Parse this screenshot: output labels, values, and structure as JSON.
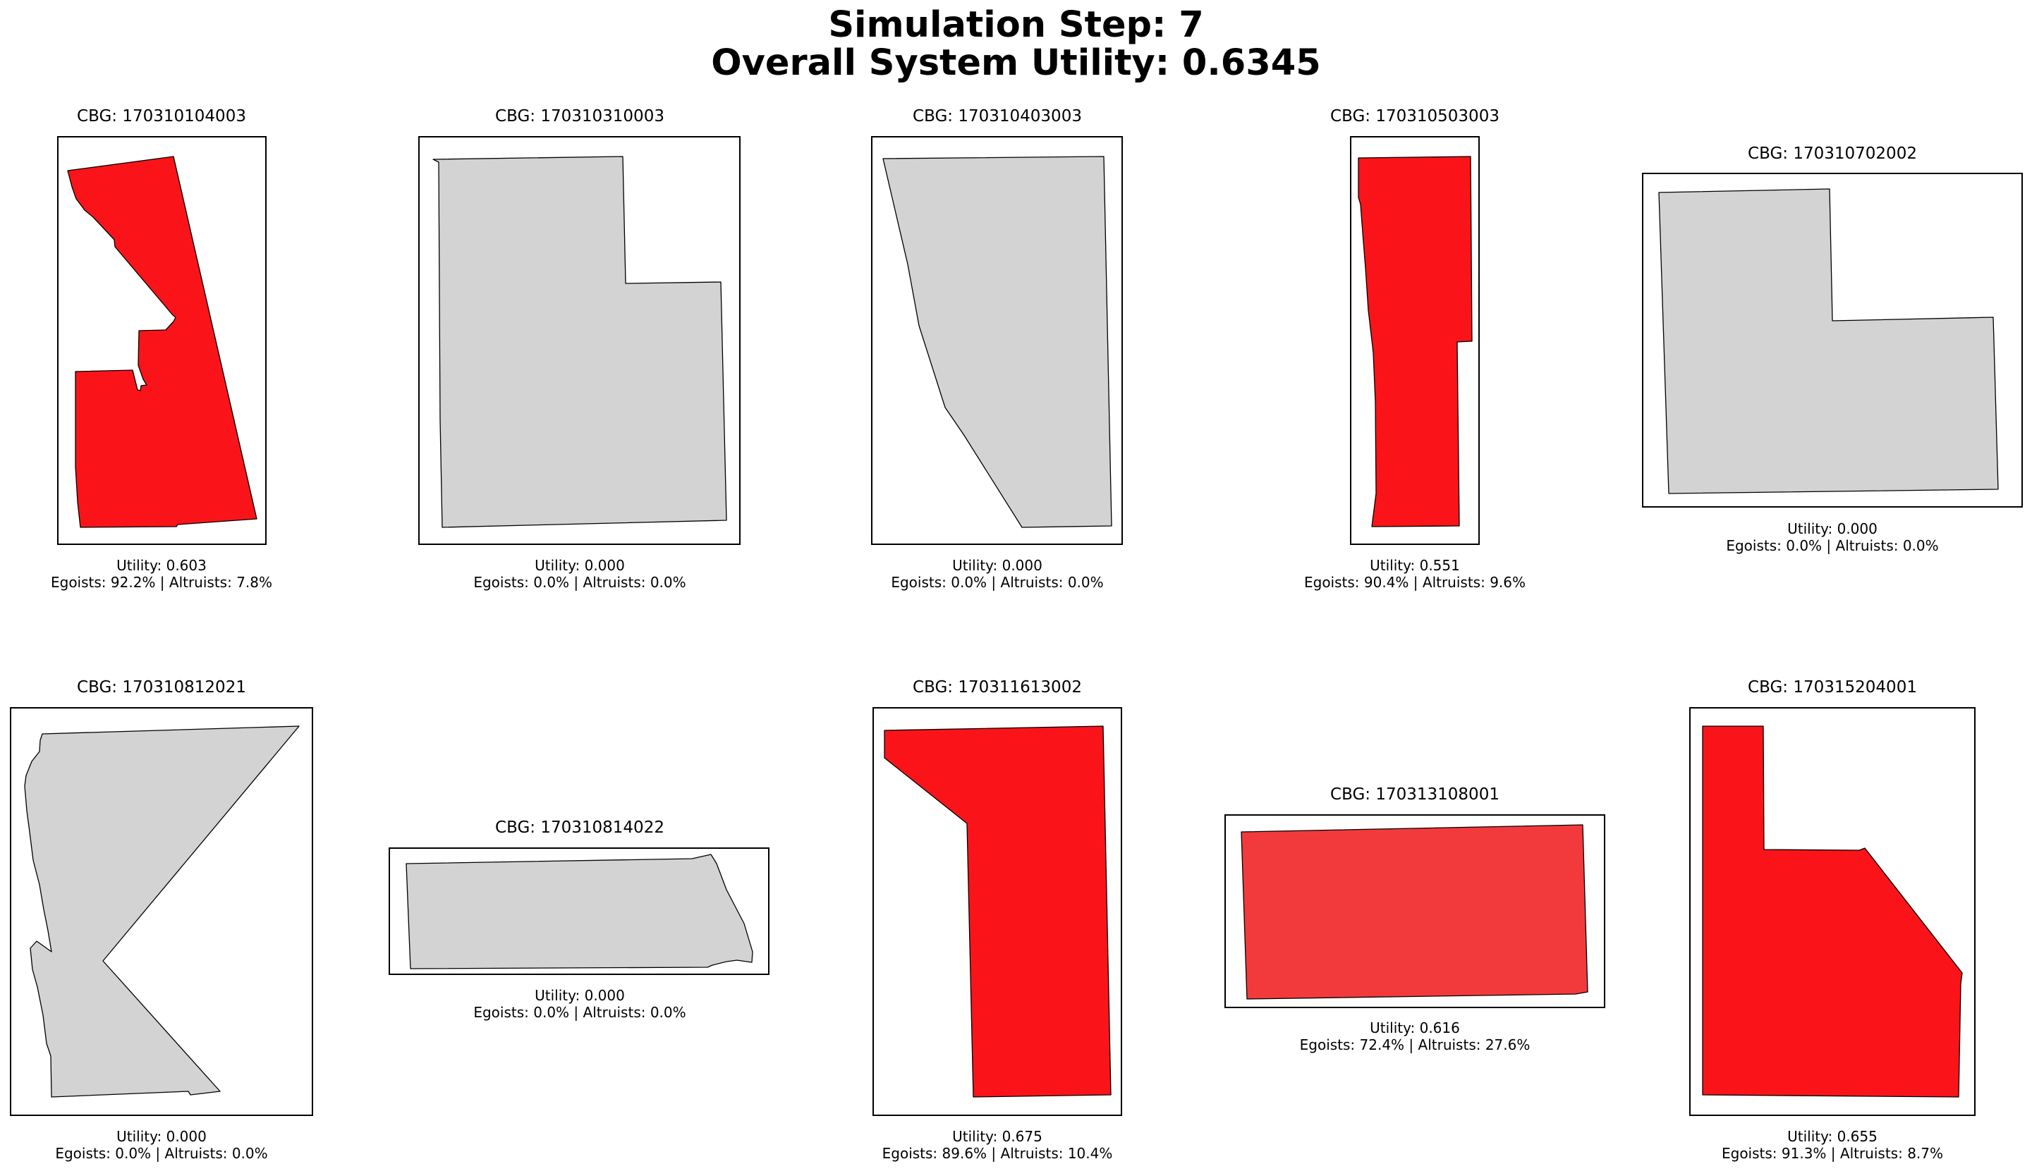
{
  "figure": {
    "title_line1": "Simulation Step: 7",
    "title_line2": "Overall System Utility: 0.6345"
  },
  "colors": {
    "inactive_fill": "#d3d3d3",
    "high_utility_fill": "#fa1419",
    "medium_utility_fill": "#f23a3c",
    "outline": "#000000"
  },
  "panels": [
    {
      "title": "CBG: 170310104003",
      "utility": "Utility: 0.603",
      "mix": "Egoists: 92.2% | Altruists: 7.8%",
      "utility_value": 0.603,
      "egoists_pct": 92.2,
      "altruists_pct": 7.8
    },
    {
      "title": "CBG: 170310310003",
      "utility": "Utility: 0.000",
      "mix": "Egoists: 0.0% | Altruists: 0.0%",
      "utility_value": 0.0,
      "egoists_pct": 0.0,
      "altruists_pct": 0.0
    },
    {
      "title": "CBG: 170310403003",
      "utility": "Utility: 0.000",
      "mix": "Egoists: 0.0% | Altruists: 0.0%",
      "utility_value": 0.0,
      "egoists_pct": 0.0,
      "altruists_pct": 0.0
    },
    {
      "title": "CBG: 170310503003",
      "utility": "Utility: 0.551",
      "mix": "Egoists: 90.4% | Altruists: 9.6%",
      "utility_value": 0.551,
      "egoists_pct": 90.4,
      "altruists_pct": 9.6
    },
    {
      "title": "CBG: 170310702002",
      "utility": "Utility: 0.000",
      "mix": "Egoists: 0.0% | Altruists: 0.0%",
      "utility_value": 0.0,
      "egoists_pct": 0.0,
      "altruists_pct": 0.0
    },
    {
      "title": "CBG: 170310812021",
      "utility": "Utility: 0.000",
      "mix": "Egoists: 0.0% | Altruists: 0.0%",
      "utility_value": 0.0,
      "egoists_pct": 0.0,
      "altruists_pct": 0.0
    },
    {
      "title": "CBG: 170310814022",
      "utility": "Utility: 0.000",
      "mix": "Egoists: 0.0% | Altruists: 0.0%",
      "utility_value": 0.0,
      "egoists_pct": 0.0,
      "altruists_pct": 0.0
    },
    {
      "title": "CBG: 170311613002",
      "utility": "Utility: 0.675",
      "mix": "Egoists: 89.6% | Altruists: 10.4%",
      "utility_value": 0.675,
      "egoists_pct": 89.6,
      "altruists_pct": 10.4
    },
    {
      "title": "CBG: 170313108001",
      "utility": "Utility: 0.616",
      "mix": "Egoists: 72.4% | Altruists: 27.6%",
      "utility_value": 0.616,
      "egoists_pct": 72.4,
      "altruists_pct": 27.6
    },
    {
      "title": "CBG: 170315204001",
      "utility": "Utility: 0.655",
      "mix": "Egoists: 91.3% | Altruists: 8.7%",
      "utility_value": 0.655,
      "egoists_pct": 91.3,
      "altruists_pct": 8.7
    }
  ]
}
